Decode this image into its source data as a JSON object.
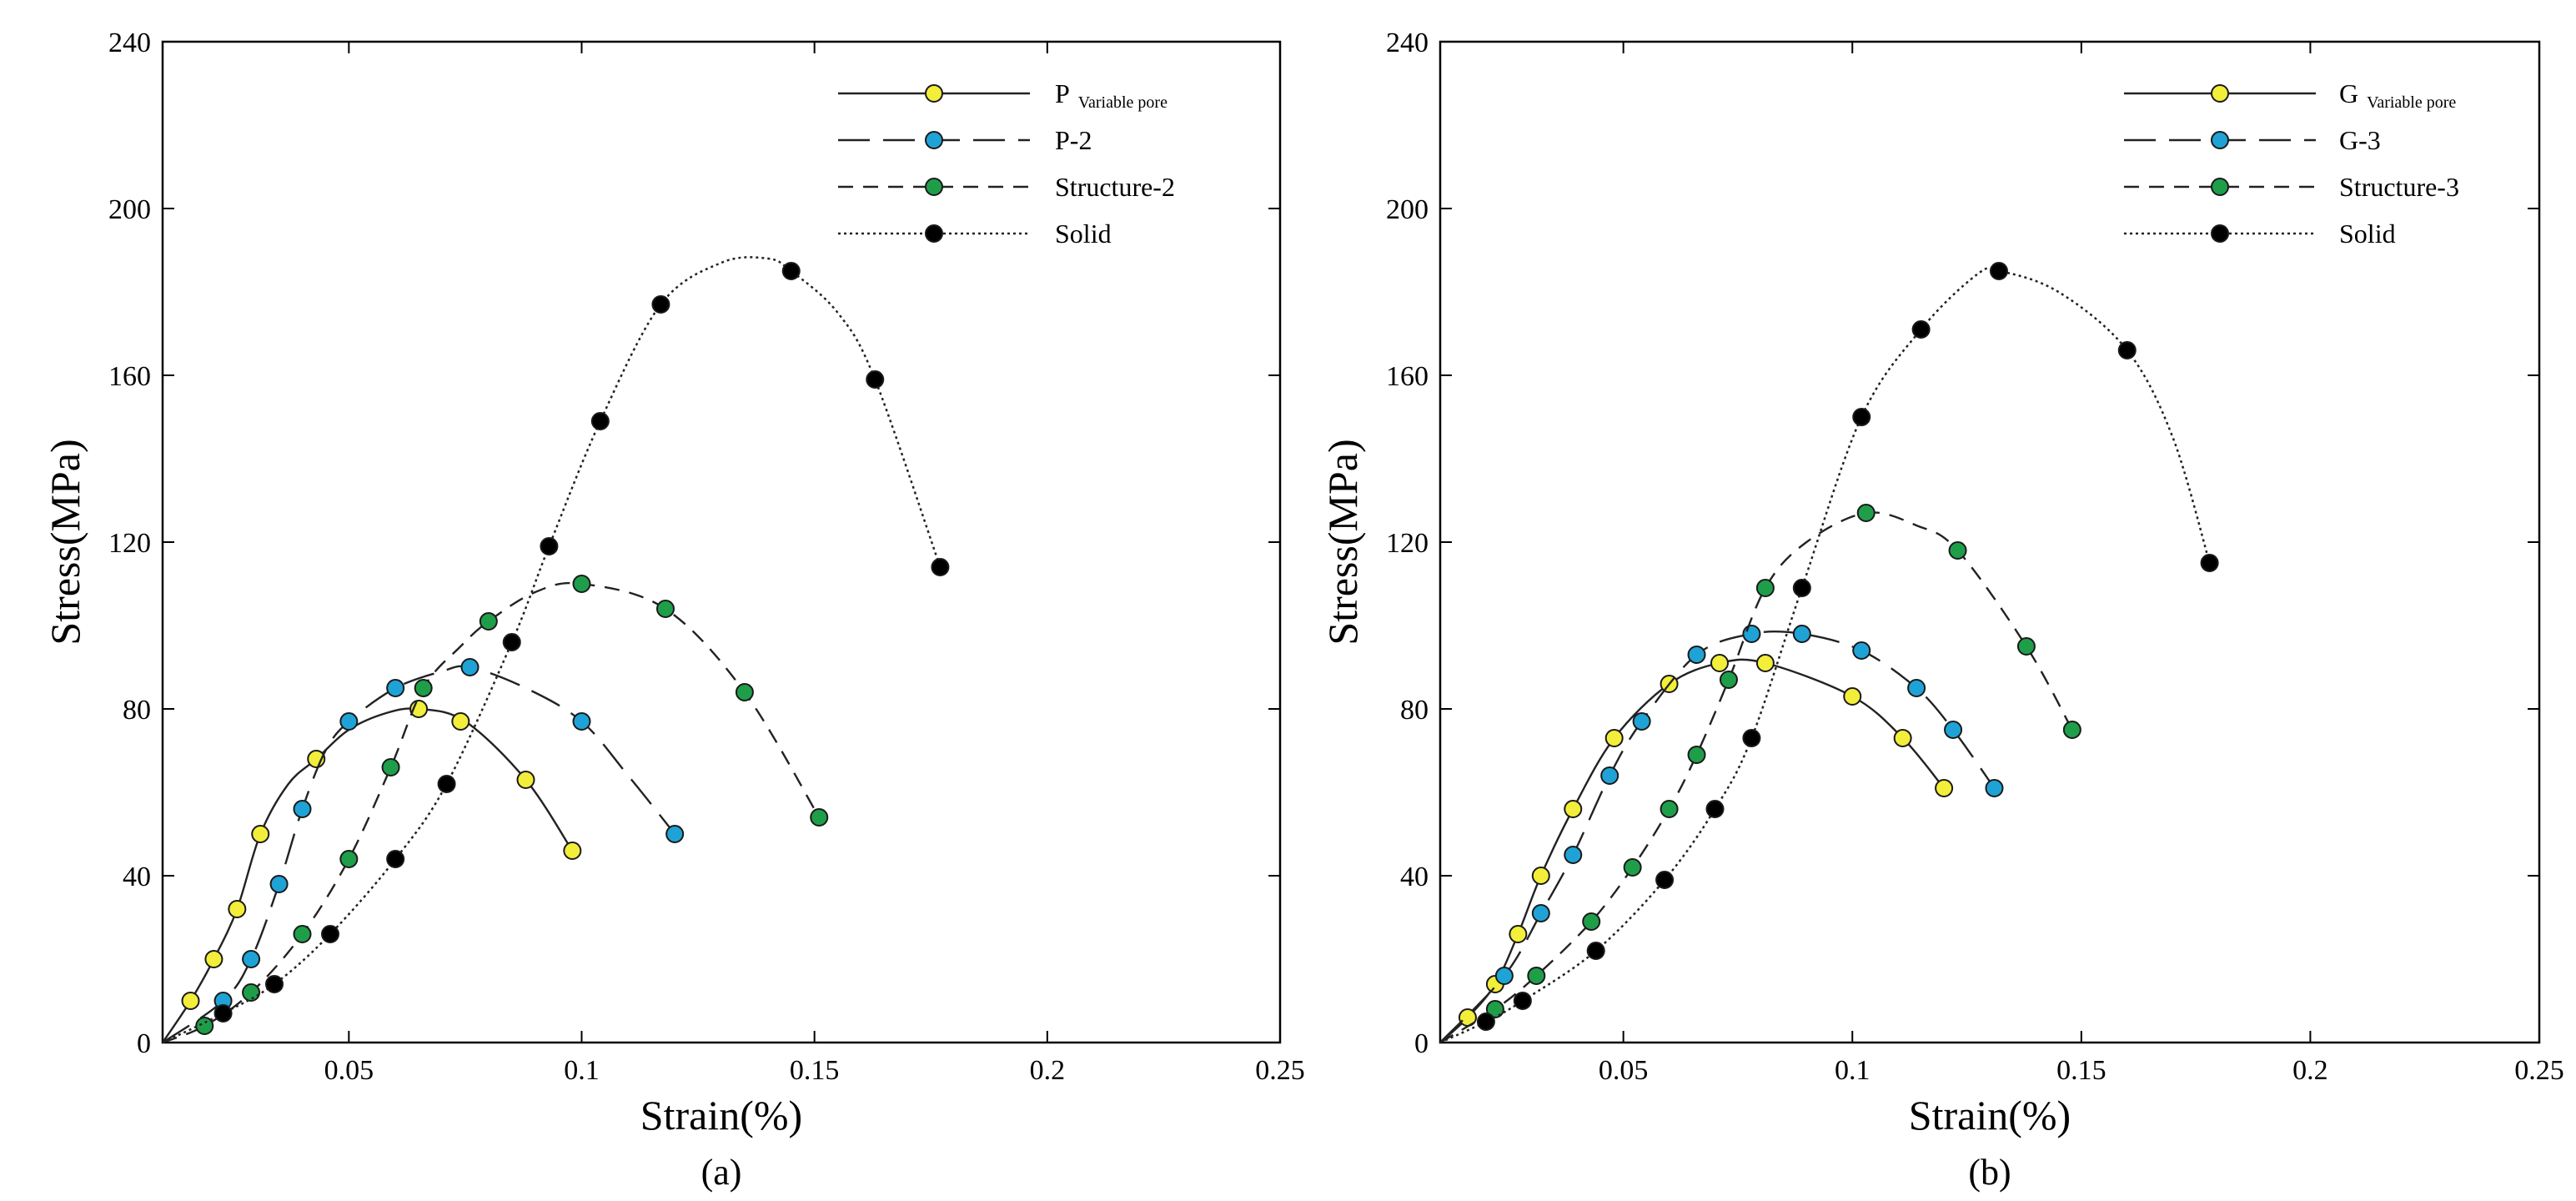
{
  "chart_data": [
    {
      "type": "line",
      "caption": "(a)",
      "xlabel": "Strain(%)",
      "ylabel": "Stress(MPa)",
      "xlim": [
        0.01,
        0.25
      ],
      "ylim": [
        0,
        240
      ],
      "x_ticks": [
        0.05,
        0.1,
        0.15,
        0.2,
        0.25
      ],
      "y_ticks": [
        0,
        40,
        80,
        120,
        160,
        200,
        240
      ],
      "x_tick_labels": [
        "0.05",
        "0.1",
        "0.15",
        "0.2",
        "0.25"
      ],
      "y_tick_labels": [
        "0",
        "40",
        "80",
        "120",
        "160",
        "200",
        "240"
      ],
      "grid": false,
      "legend_position": "top-right",
      "series": [
        {
          "name": "P",
          "name_sub": "Variable pore",
          "line_style": "solid",
          "marker_color": "#f2ee3a",
          "curve": [
            [
              0.01,
              0
            ],
            [
              0.016,
              10
            ],
            [
              0.021,
              20
            ],
            [
              0.026,
              32
            ],
            [
              0.031,
              50
            ],
            [
              0.037,
              62
            ],
            [
              0.043,
              68
            ],
            [
              0.05,
              75
            ],
            [
              0.058,
              79
            ],
            [
              0.065,
              80
            ],
            [
              0.075,
              77
            ],
            [
              0.088,
              63
            ],
            [
              0.098,
              46
            ]
          ],
          "markers": [
            [
              0.016,
              10
            ],
            [
              0.021,
              20
            ],
            [
              0.026,
              32
            ],
            [
              0.031,
              50
            ],
            [
              0.043,
              68
            ],
            [
              0.065,
              80
            ],
            [
              0.074,
              77
            ],
            [
              0.088,
              63
            ],
            [
              0.098,
              46
            ]
          ]
        },
        {
          "name": "P-2",
          "name_sub": "",
          "line_style": "long-dash",
          "marker_color": "#1fa3d6",
          "curve": [
            [
              0.01,
              0
            ],
            [
              0.023,
              10
            ],
            [
              0.029,
              20
            ],
            [
              0.035,
              38
            ],
            [
              0.04,
              56
            ],
            [
              0.045,
              70
            ],
            [
              0.05,
              77
            ],
            [
              0.06,
              85
            ],
            [
              0.07,
              89
            ],
            [
              0.076,
              90
            ],
            [
              0.088,
              85
            ],
            [
              0.1,
              77
            ],
            [
              0.11,
              64
            ],
            [
              0.12,
              50
            ]
          ],
          "markers": [
            [
              0.023,
              10
            ],
            [
              0.029,
              20
            ],
            [
              0.035,
              38
            ],
            [
              0.04,
              56
            ],
            [
              0.05,
              77
            ],
            [
              0.06,
              85
            ],
            [
              0.076,
              90
            ],
            [
              0.1,
              77
            ],
            [
              0.12,
              50
            ]
          ]
        },
        {
          "name": "Structure-2",
          "name_sub": "",
          "line_style": "dash",
          "marker_color": "#1f9e4a",
          "curve": [
            [
              0.01,
              0
            ],
            [
              0.019,
              4
            ],
            [
              0.029,
              12
            ],
            [
              0.04,
              26
            ],
            [
              0.05,
              44
            ],
            [
              0.059,
              66
            ],
            [
              0.066,
              85
            ],
            [
              0.074,
              95
            ],
            [
              0.08,
              101
            ],
            [
              0.09,
              108
            ],
            [
              0.1,
              110
            ],
            [
              0.118,
              104
            ],
            [
              0.135,
              84
            ],
            [
              0.151,
              54
            ]
          ],
          "markers": [
            [
              0.019,
              4
            ],
            [
              0.029,
              12
            ],
            [
              0.04,
              26
            ],
            [
              0.05,
              44
            ],
            [
              0.059,
              66
            ],
            [
              0.066,
              85
            ],
            [
              0.08,
              101
            ],
            [
              0.1,
              110
            ],
            [
              0.118,
              104
            ],
            [
              0.135,
              84
            ],
            [
              0.151,
              54
            ]
          ]
        },
        {
          "name": "Solid",
          "name_sub": "",
          "line_style": "dotted",
          "marker_color": "#000000",
          "curve": [
            [
              0.01,
              0
            ],
            [
              0.023,
              7
            ],
            [
              0.034,
              14
            ],
            [
              0.046,
              26
            ],
            [
              0.06,
              44
            ],
            [
              0.071,
              62
            ],
            [
              0.085,
              96
            ],
            [
              0.093,
              119
            ],
            [
              0.104,
              149
            ],
            [
              0.117,
              177
            ],
            [
              0.13,
              187
            ],
            [
              0.14,
              188
            ],
            [
              0.145,
              185
            ],
            [
              0.155,
              175
            ],
            [
              0.163,
              159
            ],
            [
              0.177,
              114
            ]
          ],
          "markers": [
            [
              0.023,
              7
            ],
            [
              0.034,
              14
            ],
            [
              0.046,
              26
            ],
            [
              0.06,
              44
            ],
            [
              0.071,
              62
            ],
            [
              0.085,
              96
            ],
            [
              0.093,
              119
            ],
            [
              0.104,
              149
            ],
            [
              0.117,
              177
            ],
            [
              0.145,
              185
            ],
            [
              0.163,
              159
            ],
            [
              0.177,
              114
            ]
          ]
        }
      ]
    },
    {
      "type": "line",
      "caption": "(b)",
      "xlabel": "Strain(%)",
      "ylabel": "Stress(MPa)",
      "xlim": [
        0.01,
        0.25
      ],
      "ylim": [
        0,
        240
      ],
      "x_ticks": [
        0.05,
        0.1,
        0.15,
        0.2,
        0.25
      ],
      "y_ticks": [
        0,
        40,
        80,
        120,
        160,
        200,
        240
      ],
      "x_tick_labels": [
        "0.05",
        "0.1",
        "0.15",
        "0.2",
        "0.25"
      ],
      "y_tick_labels": [
        "0",
        "40",
        "80",
        "120",
        "160",
        "200",
        "240"
      ],
      "grid": false,
      "legend_position": "top-right",
      "series": [
        {
          "name": "G",
          "name_sub": "Variable pore",
          "line_style": "solid",
          "marker_color": "#f2ee3a",
          "curve": [
            [
              0.01,
              0
            ],
            [
              0.016,
              6
            ],
            [
              0.022,
              14
            ],
            [
              0.027,
              26
            ],
            [
              0.032,
              40
            ],
            [
              0.039,
              56
            ],
            [
              0.048,
              73
            ],
            [
              0.06,
              86
            ],
            [
              0.071,
              91
            ],
            [
              0.081,
              91
            ],
            [
              0.1,
              83
            ],
            [
              0.111,
              73
            ],
            [
              0.12,
              61
            ]
          ],
          "markers": [
            [
              0.016,
              6
            ],
            [
              0.022,
              14
            ],
            [
              0.027,
              26
            ],
            [
              0.032,
              40
            ],
            [
              0.039,
              56
            ],
            [
              0.048,
              73
            ],
            [
              0.06,
              86
            ],
            [
              0.071,
              91
            ],
            [
              0.081,
              91
            ],
            [
              0.1,
              83
            ],
            [
              0.111,
              73
            ],
            [
              0.12,
              61
            ]
          ]
        },
        {
          "name": "G-3",
          "name_sub": "",
          "line_style": "long-dash",
          "marker_color": "#1fa3d6",
          "curve": [
            [
              0.01,
              0
            ],
            [
              0.024,
              16
            ],
            [
              0.032,
              31
            ],
            [
              0.039,
              45
            ],
            [
              0.047,
              64
            ],
            [
              0.054,
              77
            ],
            [
              0.066,
              93
            ],
            [
              0.078,
              98
            ],
            [
              0.089,
              98
            ],
            [
              0.102,
              94
            ],
            [
              0.114,
              85
            ],
            [
              0.122,
              75
            ],
            [
              0.131,
              61
            ]
          ],
          "markers": [
            [
              0.024,
              16
            ],
            [
              0.032,
              31
            ],
            [
              0.039,
              45
            ],
            [
              0.047,
              64
            ],
            [
              0.054,
              77
            ],
            [
              0.066,
              93
            ],
            [
              0.078,
              98
            ],
            [
              0.089,
              98
            ],
            [
              0.102,
              94
            ],
            [
              0.114,
              85
            ],
            [
              0.122,
              75
            ],
            [
              0.131,
              61
            ]
          ]
        },
        {
          "name": "Structure-3",
          "name_sub": "",
          "line_style": "dash",
          "marker_color": "#1f9e4a",
          "curve": [
            [
              0.01,
              0
            ],
            [
              0.022,
              8
            ],
            [
              0.031,
              16
            ],
            [
              0.043,
              29
            ],
            [
              0.052,
              42
            ],
            [
              0.06,
              56
            ],
            [
              0.066,
              69
            ],
            [
              0.073,
              87
            ],
            [
              0.081,
              109
            ],
            [
              0.09,
              120
            ],
            [
              0.103,
              127
            ],
            [
              0.114,
              124
            ],
            [
              0.123,
              118
            ],
            [
              0.138,
              95
            ],
            [
              0.148,
              75
            ]
          ],
          "markers": [
            [
              0.022,
              8
            ],
            [
              0.031,
              16
            ],
            [
              0.043,
              29
            ],
            [
              0.052,
              42
            ],
            [
              0.06,
              56
            ],
            [
              0.066,
              69
            ],
            [
              0.073,
              87
            ],
            [
              0.081,
              109
            ],
            [
              0.103,
              127
            ],
            [
              0.123,
              118
            ],
            [
              0.138,
              95
            ],
            [
              0.148,
              75
            ]
          ]
        },
        {
          "name": "Solid",
          "name_sub": "",
          "line_style": "dotted",
          "marker_color": "#000000",
          "curve": [
            [
              0.01,
              0
            ],
            [
              0.02,
              5
            ],
            [
              0.028,
              10
            ],
            [
              0.044,
              22
            ],
            [
              0.059,
              39
            ],
            [
              0.07,
              56
            ],
            [
              0.078,
              73
            ],
            [
              0.089,
              109
            ],
            [
              0.102,
              150
            ],
            [
              0.115,
              171
            ],
            [
              0.127,
              184
            ],
            [
              0.132,
              185
            ],
            [
              0.145,
              180
            ],
            [
              0.16,
              166
            ],
            [
              0.17,
              145
            ],
            [
              0.178,
              115
            ]
          ],
          "markers": [
            [
              0.02,
              5
            ],
            [
              0.028,
              10
            ],
            [
              0.044,
              22
            ],
            [
              0.059,
              39
            ],
            [
              0.07,
              56
            ],
            [
              0.078,
              73
            ],
            [
              0.089,
              109
            ],
            [
              0.102,
              150
            ],
            [
              0.115,
              171
            ],
            [
              0.132,
              185
            ],
            [
              0.16,
              166
            ],
            [
              0.178,
              115
            ]
          ]
        }
      ]
    }
  ]
}
